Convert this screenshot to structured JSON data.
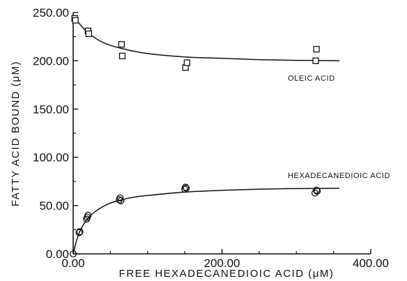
{
  "chart_data": {
    "type": "scatter",
    "title": "",
    "xlabel": "FREE HEXADECANEDIOIC ACID (μM)",
    "ylabel": "FATTY ACID BOUND (μM)",
    "xlim": [
      0,
      400
    ],
    "ylim": [
      0,
      250
    ],
    "x_ticks": [
      0,
      200,
      400
    ],
    "x_tick_labels": [
      "0.00",
      "200.00",
      "400.00"
    ],
    "y_ticks": [
      0,
      50,
      100,
      150,
      200,
      250
    ],
    "y_tick_labels": [
      "0.00",
      "50.00",
      "100.00",
      "150.00",
      "200.00",
      "250.00"
    ],
    "grid": false,
    "legend": "none",
    "series": [
      {
        "name": "OLEIC ACID",
        "marker": "square",
        "points": [
          [
            2,
            244
          ],
          [
            3,
            242
          ],
          [
            20,
            231
          ],
          [
            21,
            228
          ],
          [
            65,
            217
          ],
          [
            66,
            205
          ],
          [
            151,
            193
          ],
          [
            153,
            198
          ],
          [
            326,
            200
          ],
          [
            327,
            212
          ]
        ],
        "fit": [
          [
            0,
            247
          ],
          [
            10,
            237
          ],
          [
            20,
            229
          ],
          [
            35,
            221
          ],
          [
            50,
            216
          ],
          [
            75,
            211
          ],
          [
            100,
            207.5
          ],
          [
            150,
            204
          ],
          [
            200,
            202.5
          ],
          [
            250,
            201.2
          ],
          [
            300,
            200.5
          ],
          [
            358,
            200
          ]
        ]
      },
      {
        "name": "HEXADECANEDIOIC ACID",
        "marker": "circle",
        "points": [
          [
            0,
            0
          ],
          [
            8,
            22
          ],
          [
            9,
            23
          ],
          [
            18,
            36
          ],
          [
            19,
            38
          ],
          [
            20,
            40
          ],
          [
            62,
            56
          ],
          [
            63,
            58
          ],
          [
            64,
            55
          ],
          [
            150,
            67
          ],
          [
            151,
            69
          ],
          [
            152,
            68
          ],
          [
            325,
            63
          ],
          [
            327,
            66
          ],
          [
            328,
            65
          ]
        ],
        "fit": [
          [
            0,
            0
          ],
          [
            5,
            15
          ],
          [
            10,
            25
          ],
          [
            20,
            37
          ],
          [
            30,
            44
          ],
          [
            45,
            51
          ],
          [
            60,
            55
          ],
          [
            80,
            58.5
          ],
          [
            100,
            60.5
          ],
          [
            150,
            64
          ],
          [
            200,
            65.8
          ],
          [
            250,
            67
          ],
          [
            300,
            67.6
          ],
          [
            358,
            68
          ]
        ]
      }
    ]
  }
}
